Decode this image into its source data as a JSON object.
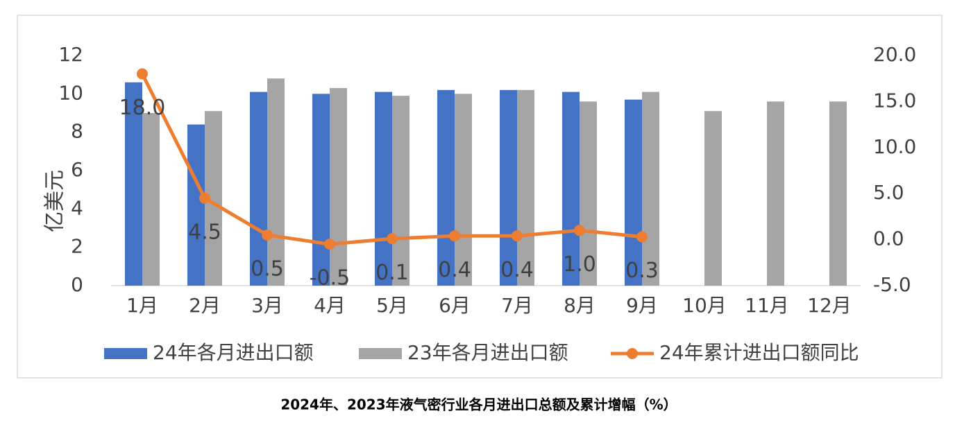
{
  "chart_data": {
    "type": "bar-line",
    "title": "2024年、2023年液气密行业各月进出口总额及累计增幅（%）",
    "y_label": "亿美元",
    "categories": [
      "1月",
      "2月",
      "3月",
      "4月",
      "5月",
      "6月",
      "7月",
      "8月",
      "9月",
      "10月",
      "11月",
      "12月"
    ],
    "series": [
      {
        "name": "24年各月进出口额",
        "type": "bar",
        "color": "#4472c4",
        "values": [
          10.6,
          8.4,
          10.1,
          10.0,
          10.1,
          10.2,
          10.2,
          10.1,
          9.7,
          null,
          null,
          null
        ]
      },
      {
        "name": "23年各月进出口额",
        "type": "bar",
        "color": "#a5a5a5",
        "values": [
          9.0,
          9.1,
          10.8,
          10.3,
          9.9,
          10.0,
          10.2,
          9.6,
          10.1,
          9.1,
          9.6,
          9.6
        ]
      },
      {
        "name": "24年累计进出口额同比",
        "type": "line",
        "axis": "y2",
        "color": "#ed7d31",
        "values": [
          18.0,
          4.5,
          0.5,
          -0.5,
          0.1,
          0.4,
          0.4,
          1.0,
          0.3,
          null,
          null,
          null
        ],
        "value_labels": [
          "18.0",
          "4.5",
          "0.5",
          "-0.5",
          "0.1",
          "0.4",
          "0.4",
          "1.0",
          "0.3",
          null,
          null,
          null
        ]
      }
    ],
    "ylim": [
      0,
      12
    ],
    "yticks": [
      0,
      2,
      4,
      6,
      8,
      10,
      12
    ],
    "y2lim": [
      -5,
      20
    ],
    "y2ticks": [
      {
        "value": -5,
        "label": "-5.0"
      },
      {
        "value": 0,
        "label": "0.0"
      },
      {
        "value": 5,
        "label": "5.0"
      },
      {
        "value": 10,
        "label": "10.0"
      },
      {
        "value": 15,
        "label": "15.0"
      },
      {
        "value": 20,
        "label": "20.0"
      }
    ],
    "grid": false,
    "legend": "bottom"
  }
}
